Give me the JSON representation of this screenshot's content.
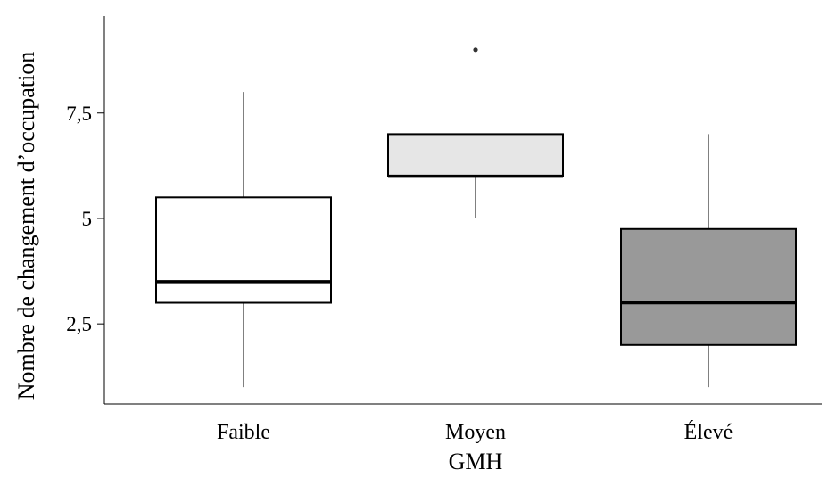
{
  "chart_data": {
    "type": "boxplot",
    "title": "",
    "xlabel": "GMH",
    "ylabel": "Nombre de changement d’occupation",
    "categories": [
      "Faible",
      "Moyen",
      "Élevé"
    ],
    "boxes": [
      {
        "category": "Faible",
        "min": 1,
        "q1": 3,
        "median": 3.5,
        "q3": 5.5,
        "max": 8,
        "outliers": [],
        "fill": "#ffffff"
      },
      {
        "category": "Moyen",
        "min": 5,
        "q1": 6,
        "median": 6,
        "q3": 7,
        "max": 7,
        "outliers": [
          9
        ],
        "fill": "#e6e6e6"
      },
      {
        "category": "Élevé",
        "min": 1,
        "q1": 2,
        "median": 3,
        "q3": 4.75,
        "max": 7,
        "outliers": [],
        "fill": "#999999"
      }
    ],
    "yticks": [
      2.5,
      5,
      7.5
    ],
    "ytick_labels": [
      "2,5",
      "5",
      "7,5"
    ],
    "ylim": [
      0.6,
      9.8
    ],
    "grid": false,
    "legend": "none"
  }
}
